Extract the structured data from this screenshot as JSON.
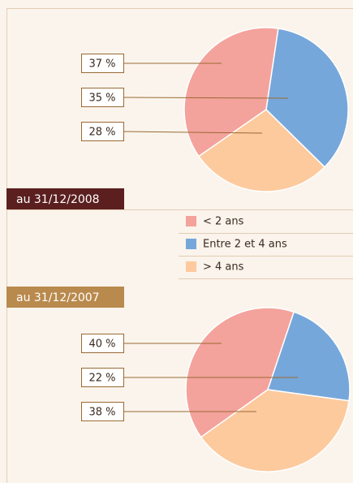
{
  "chart_data": [
    {
      "type": "pie",
      "title": "au 31/12/2008",
      "categories": [
        "< 2 ans",
        "Entre 2 et 4 ans",
        "> 4 ans"
      ],
      "values": [
        37,
        35,
        28
      ],
      "value_labels": [
        "37 %",
        "35 %",
        "28 %"
      ],
      "colors": [
        "#f4a29c",
        "#76a7da",
        "#fdca9e"
      ]
    },
    {
      "type": "pie",
      "title": "au 31/12/2007",
      "categories": [
        "< 2 ans",
        "Entre 2 et 4 ans",
        "> 4 ans"
      ],
      "values": [
        40,
        22,
        38
      ],
      "value_labels": [
        "40 %",
        "22 %",
        "38 %"
      ],
      "colors": [
        "#f4a29c",
        "#76a7da",
        "#fdca9e"
      ]
    }
  ]
}
